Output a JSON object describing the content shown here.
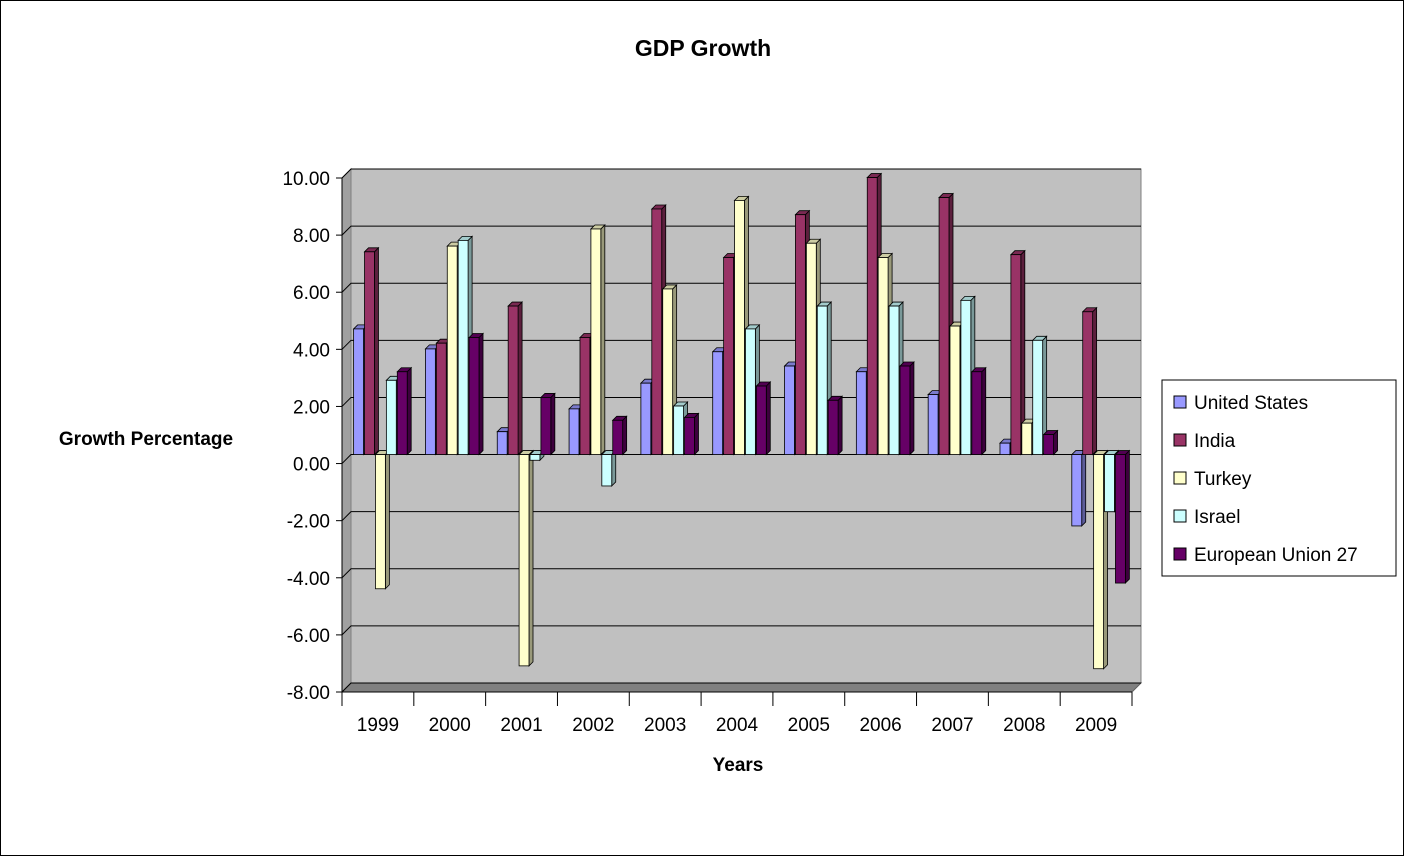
{
  "chart_data": {
    "type": "bar",
    "title": "GDP Growth",
    "xlabel": "Years",
    "ylabel": "Growth Percentage",
    "categories": [
      "1999",
      "2000",
      "2001",
      "2002",
      "2003",
      "2004",
      "2005",
      "2006",
      "2007",
      "2008",
      "2009"
    ],
    "ylim": [
      -8,
      10
    ],
    "yticks": [
      "10.00",
      "8.00",
      "6.00",
      "4.00",
      "2.00",
      "0.00",
      "-2.00",
      "-4.00",
      "-6.00",
      "-8.00"
    ],
    "grid": true,
    "legend_position": "right",
    "series": [
      {
        "name": "United States",
        "color": "#9999ff",
        "values": [
          4.4,
          3.7,
          0.8,
          1.6,
          2.5,
          3.6,
          3.1,
          2.9,
          2.1,
          0.4,
          -2.5
        ]
      },
      {
        "name": "India",
        "color": "#993366",
        "values": [
          7.1,
          3.9,
          5.2,
          4.1,
          8.6,
          6.9,
          8.4,
          9.7,
          9.0,
          7.0,
          5.0
        ]
      },
      {
        "name": "Turkey",
        "color": "#ffffcc",
        "values": [
          -4.7,
          7.3,
          -7.4,
          7.9,
          5.8,
          8.9,
          7.4,
          6.9,
          4.5,
          1.1,
          -7.5
        ]
      },
      {
        "name": "Israel",
        "color": "#ccffff",
        "values": [
          2.6,
          7.5,
          -0.2,
          -1.1,
          1.7,
          4.4,
          5.2,
          5.2,
          5.4,
          4.0,
          -2.0
        ]
      },
      {
        "name": "European Union 27",
        "color": "#660066",
        "values": [
          2.9,
          4.1,
          2.0,
          1.2,
          1.3,
          2.4,
          1.9,
          3.1,
          2.9,
          0.7,
          -4.5
        ]
      }
    ]
  }
}
